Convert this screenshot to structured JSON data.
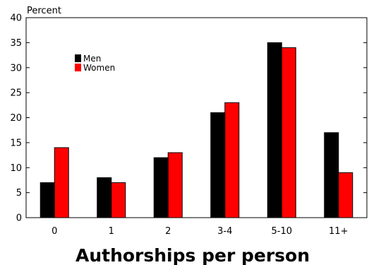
{
  "chart_data": {
    "type": "bar",
    "title": "",
    "xlabel": "Authorships per person",
    "ylabel": "Percent",
    "categories": [
      "0",
      "1",
      "2",
      "3-4",
      "5-10",
      "11+"
    ],
    "series": [
      {
        "name": "Men",
        "color": "#000000",
        "values": [
          7,
          8,
          12,
          21,
          35,
          17
        ]
      },
      {
        "name": "Women",
        "color": "#ff0000",
        "values": [
          14,
          7,
          13,
          23,
          34,
          9
        ]
      }
    ],
    "ylim": [
      0,
      40
    ],
    "yticks": [
      "0",
      "5",
      "10",
      "15",
      "20",
      "25",
      "30",
      "35",
      "40"
    ],
    "grid": false,
    "legend_position": "top-left"
  }
}
